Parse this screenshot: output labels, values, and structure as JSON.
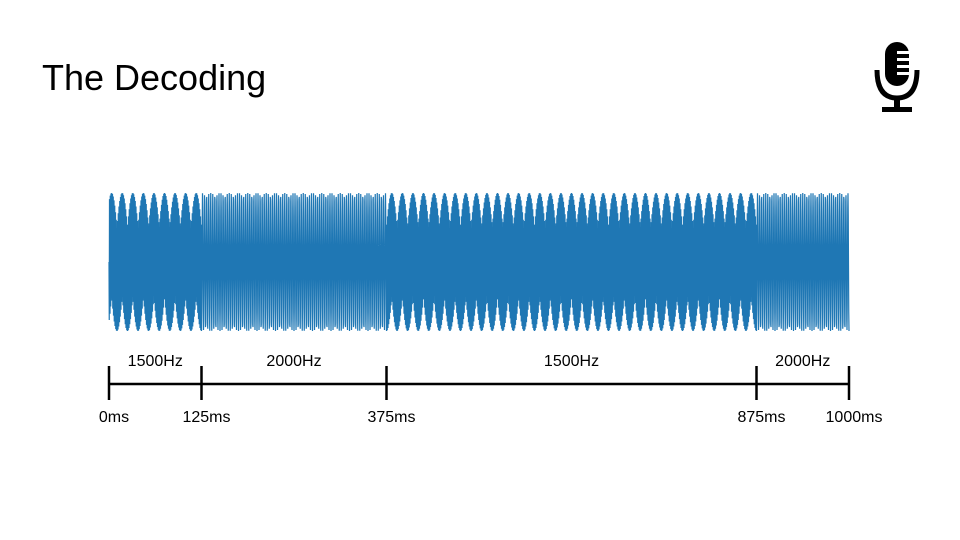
{
  "slide": {
    "title": "The Decoding"
  },
  "icons": {
    "top_right": "microphone-icon"
  },
  "colors": {
    "waveform": "#1f77b4",
    "axis": "#000000",
    "text": "#000000",
    "background": "#ffffff"
  },
  "waveform": {
    "duration_ms": 1000,
    "segments": [
      {
        "label": "1500Hz",
        "freq_hz": 1500,
        "start_ms": 0,
        "end_ms": 125
      },
      {
        "label": "2000Hz",
        "freq_hz": 2000,
        "start_ms": 125,
        "end_ms": 375
      },
      {
        "label": "1500Hz",
        "freq_hz": 1500,
        "start_ms": 375,
        "end_ms": 875
      },
      {
        "label": "2000Hz",
        "freq_hz": 2000,
        "start_ms": 875,
        "end_ms": 1000
      }
    ],
    "ticks": [
      {
        "ms": 0,
        "label": "0ms"
      },
      {
        "ms": 125,
        "label": "125ms"
      },
      {
        "ms": 375,
        "label": "375ms"
      },
      {
        "ms": 875,
        "label": "875ms"
      },
      {
        "ms": 1000,
        "label": "1000ms"
      }
    ]
  }
}
